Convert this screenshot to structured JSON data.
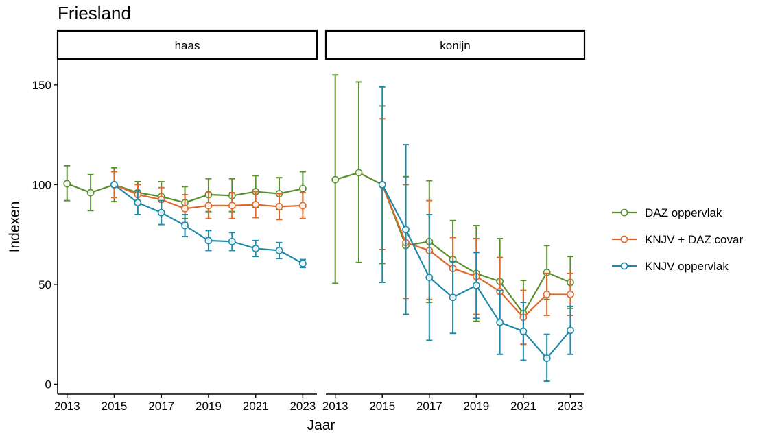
{
  "chart_data": {
    "type": "line",
    "title": "Friesland",
    "xlabel": "Jaar",
    "ylabel": "Indexen",
    "ylim": [
      -5,
      163
    ],
    "yticks": [
      0,
      50,
      100,
      150
    ],
    "xlim": [
      2012.6,
      2023.6
    ],
    "xticks": [
      2013,
      2015,
      2017,
      2019,
      2021,
      2023
    ],
    "grid": false,
    "legend_position": "right",
    "legend": [
      {
        "name": "DAZ oppervlak",
        "color": "#5a8f2e"
      },
      {
        "name": "KNJV + DAZ covar",
        "color": "#e0672a"
      },
      {
        "name": "KNJV oppervlak",
        "color": "#1b8aab"
      }
    ],
    "panels": [
      {
        "label": "haas",
        "series": [
          {
            "name": "DAZ oppervlak",
            "color": "#5a8f2e",
            "points": [
              {
                "x": 2013,
                "y": 100.5,
                "lo": 92,
                "hi": 109.5
              },
              {
                "x": 2014,
                "y": 96,
                "lo": 87,
                "hi": 105
              },
              {
                "x": 2015,
                "y": 100,
                "lo": 91.5,
                "hi": 108.5
              },
              {
                "x": 2016,
                "y": 96,
                "lo": 91,
                "hi": 101.5
              },
              {
                "x": 2017,
                "y": 94,
                "lo": 86.5,
                "hi": 101.5
              },
              {
                "x": 2018,
                "y": 91,
                "lo": 83,
                "hi": 99
              },
              {
                "x": 2019,
                "y": 95,
                "lo": 86.5,
                "hi": 103
              },
              {
                "x": 2020,
                "y": 94.5,
                "lo": 86.5,
                "hi": 103
              },
              {
                "x": 2021,
                "y": 96.5,
                "lo": 88.5,
                "hi": 104.5
              },
              {
                "x": 2022,
                "y": 95.5,
                "lo": 87.5,
                "hi": 103.5
              },
              {
                "x": 2023,
                "y": 98,
                "lo": 89.5,
                "hi": 106.5
              }
            ]
          },
          {
            "name": "KNJV + DAZ covar",
            "color": "#e0672a",
            "points": [
              {
                "x": 2015,
                "y": 100,
                "lo": 93.5,
                "hi": 106.5
              },
              {
                "x": 2016,
                "y": 95,
                "lo": 90,
                "hi": 100
              },
              {
                "x": 2017,
                "y": 92.5,
                "lo": 86,
                "hi": 98.5
              },
              {
                "x": 2018,
                "y": 88,
                "lo": 81,
                "hi": 95
              },
              {
                "x": 2019,
                "y": 89.5,
                "lo": 83,
                "hi": 96
              },
              {
                "x": 2020,
                "y": 89.5,
                "lo": 83,
                "hi": 96
              },
              {
                "x": 2021,
                "y": 90,
                "lo": 83.5,
                "hi": 96.5
              },
              {
                "x": 2022,
                "y": 89,
                "lo": 82.5,
                "hi": 95.5
              },
              {
                "x": 2023,
                "y": 89.5,
                "lo": 83,
                "hi": 96
              }
            ]
          },
          {
            "name": "KNJV oppervlak",
            "color": "#1b8aab",
            "points": [
              {
                "x": 2015,
                "y": 100,
                "lo": 100,
                "hi": 100
              },
              {
                "x": 2016,
                "y": 91,
                "lo": 85,
                "hi": 97
              },
              {
                "x": 2017,
                "y": 86,
                "lo": 80,
                "hi": 92
              },
              {
                "x": 2018,
                "y": 79.5,
                "lo": 74,
                "hi": 85
              },
              {
                "x": 2019,
                "y": 72,
                "lo": 67,
                "hi": 77
              },
              {
                "x": 2020,
                "y": 71.5,
                "lo": 67,
                "hi": 76
              },
              {
                "x": 2021,
                "y": 68,
                "lo": 64,
                "hi": 72
              },
              {
                "x": 2022,
                "y": 67,
                "lo": 63,
                "hi": 71
              },
              {
                "x": 2023,
                "y": 60.5,
                "lo": 58.5,
                "hi": 62.5
              }
            ]
          }
        ]
      },
      {
        "label": "konijn",
        "series": [
          {
            "name": "DAZ oppervlak",
            "color": "#5a8f2e",
            "points": [
              {
                "x": 2013,
                "y": 102.5,
                "lo": 50.5,
                "hi": 155
              },
              {
                "x": 2014,
                "y": 106,
                "lo": 61,
                "hi": 151.5
              },
              {
                "x": 2015,
                "y": 100,
                "lo": 60.5,
                "hi": 139.5
              },
              {
                "x": 2016,
                "y": 69.5,
                "lo": 35,
                "hi": 104
              },
              {
                "x": 2017,
                "y": 71.5,
                "lo": 41,
                "hi": 102
              },
              {
                "x": 2018,
                "y": 62.5,
                "lo": 43.5,
                "hi": 82
              },
              {
                "x": 2019,
                "y": 55.5,
                "lo": 31.5,
                "hi": 79.5
              },
              {
                "x": 2020,
                "y": 51.5,
                "lo": 30,
                "hi": 73
              },
              {
                "x": 2021,
                "y": 35.5,
                "lo": 20,
                "hi": 52
              },
              {
                "x": 2022,
                "y": 56,
                "lo": 42.5,
                "hi": 69.5
              },
              {
                "x": 2023,
                "y": 51,
                "lo": 38,
                "hi": 64
              }
            ]
          },
          {
            "name": "KNJV + DAZ covar",
            "color": "#e0672a",
            "points": [
              {
                "x": 2015,
                "y": 100,
                "lo": 67.5,
                "hi": 133
              },
              {
                "x": 2016,
                "y": 71,
                "lo": 43,
                "hi": 100
              },
              {
                "x": 2017,
                "y": 67,
                "lo": 42.5,
                "hi": 92
              },
              {
                "x": 2018,
                "y": 58,
                "lo": 43,
                "hi": 73.5
              },
              {
                "x": 2019,
                "y": 54,
                "lo": 35,
                "hi": 73
              },
              {
                "x": 2020,
                "y": 46.5,
                "lo": 30,
                "hi": 63.5
              },
              {
                "x": 2021,
                "y": 33.5,
                "lo": 20,
                "hi": 47
              },
              {
                "x": 2022,
                "y": 45,
                "lo": 34.5,
                "hi": 55.5
              },
              {
                "x": 2023,
                "y": 45,
                "lo": 34.5,
                "hi": 55.5
              }
            ]
          },
          {
            "name": "KNJV oppervlak",
            "color": "#1b8aab",
            "points": [
              {
                "x": 2015,
                "y": 100,
                "lo": 51,
                "hi": 149
              },
              {
                "x": 2016,
                "y": 77.5,
                "lo": 35,
                "hi": 120
              },
              {
                "x": 2017,
                "y": 53.5,
                "lo": 22,
                "hi": 85
              },
              {
                "x": 2018,
                "y": 43.5,
                "lo": 25.5,
                "hi": 61.5
              },
              {
                "x": 2019,
                "y": 49.5,
                "lo": 33,
                "hi": 66
              },
              {
                "x": 2020,
                "y": 31,
                "lo": 15,
                "hi": 47
              },
              {
                "x": 2021,
                "y": 26.5,
                "lo": 12,
                "hi": 41
              },
              {
                "x": 2022,
                "y": 13,
                "lo": 1.5,
                "hi": 25
              },
              {
                "x": 2023,
                "y": 27,
                "lo": 15,
                "hi": 39
              }
            ]
          }
        ]
      }
    ]
  }
}
